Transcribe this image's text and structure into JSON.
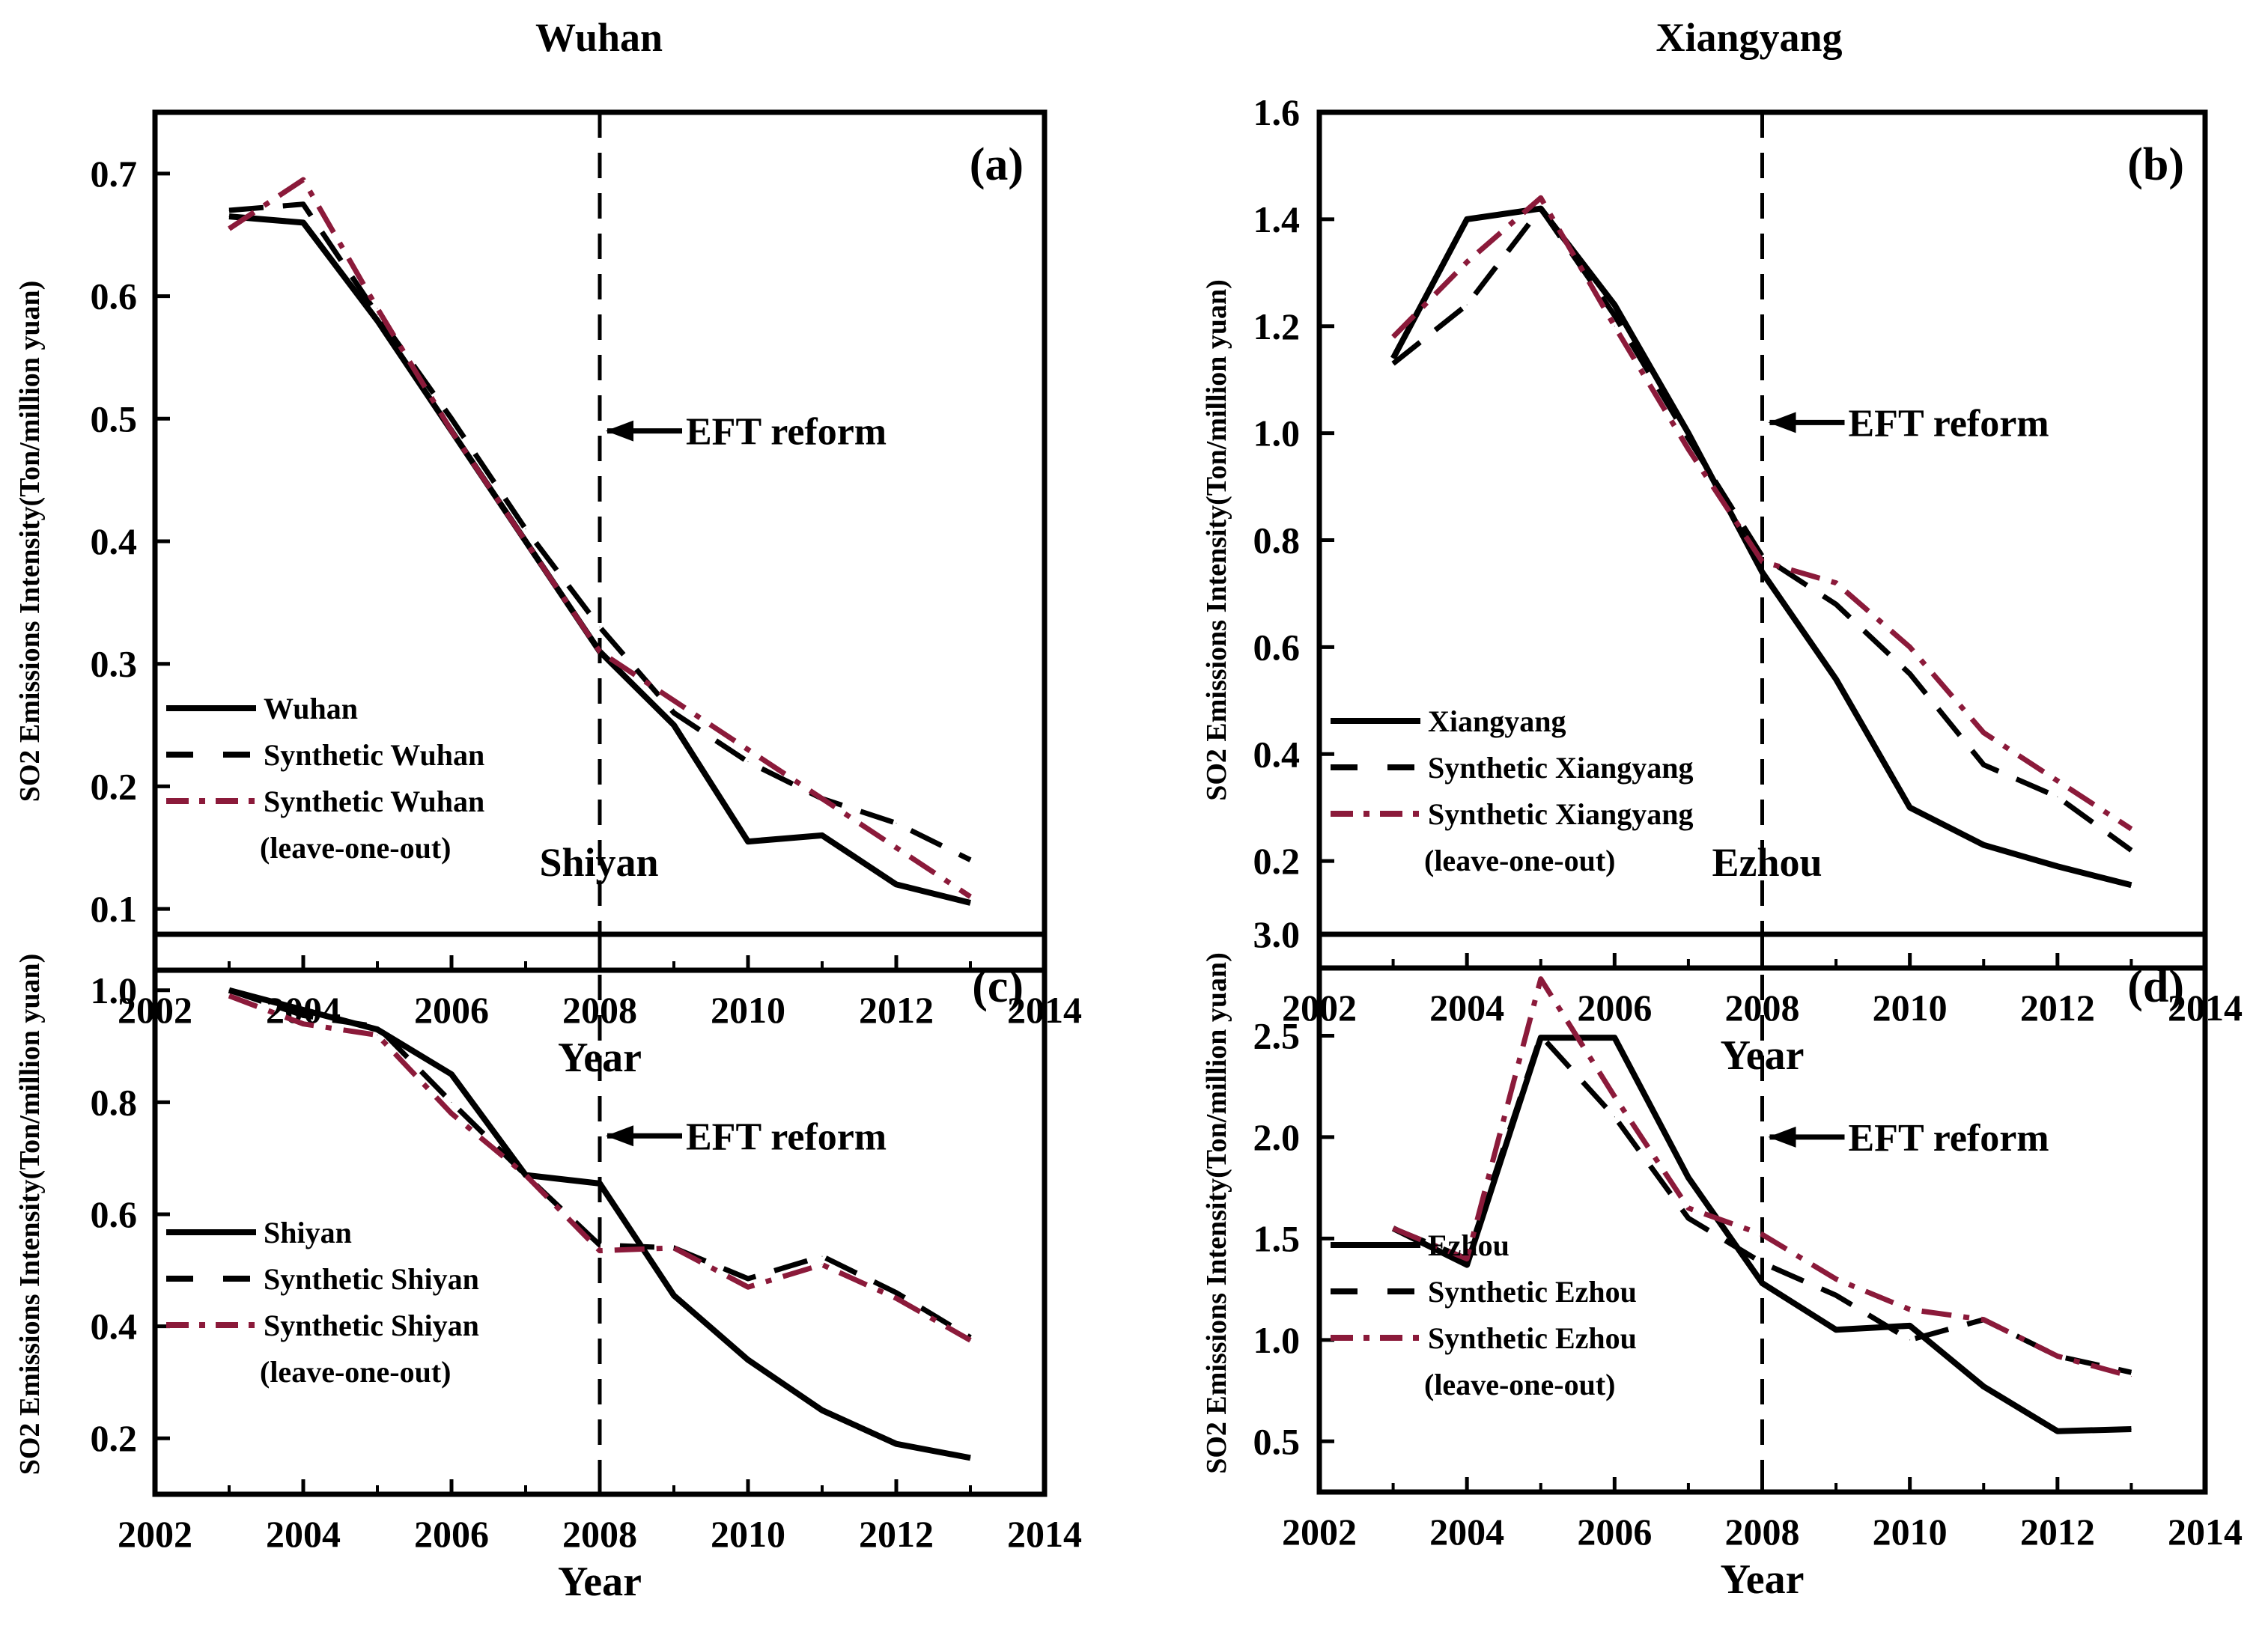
{
  "colors": {
    "actual": "#000000",
    "synthetic": "#000000",
    "leave_one_out": "#8b1a3a"
  },
  "chart_data": [
    {
      "type": "line",
      "panel_label": "(a)",
      "title": "Wuhan",
      "xlabel": "Year",
      "ylabel": "SO2 Emissions Intensity(Ton/million yuan)",
      "xlim": [
        2002,
        2014
      ],
      "ylim": [
        0.05,
        0.75
      ],
      "xticks": [
        2002,
        2004,
        2006,
        2008,
        2010,
        2012,
        2014
      ],
      "yticks": [
        0.1,
        0.2,
        0.3,
        0.4,
        0.5,
        0.6,
        0.7
      ],
      "ytick_labels": [
        "0.1",
        "0.2",
        "0.3",
        "0.4",
        "0.5",
        "0.6",
        "0.7"
      ],
      "annotation": {
        "text": "EFT reform",
        "x": 2008,
        "y": 0.49
      },
      "vline_x": 2008,
      "legend_position": "bottom-left",
      "x": [
        2003,
        2004,
        2005,
        2006,
        2007,
        2008,
        2009,
        2010,
        2011,
        2012,
        2013
      ],
      "series": [
        {
          "name": "Wuhan",
          "style": "solid",
          "values": [
            0.665,
            0.66,
            0.58,
            0.49,
            0.4,
            0.31,
            0.25,
            0.155,
            0.16,
            0.12,
            0.105
          ]
        },
        {
          "name": "Synthetic Wuhan",
          "style": "dashed",
          "values": [
            0.67,
            0.675,
            0.585,
            0.5,
            0.41,
            0.33,
            0.26,
            0.22,
            0.19,
            0.17,
            0.14
          ]
        },
        {
          "name": "Synthetic Wuhan",
          "name_line2": "(leave-one-out)",
          "style": "dashdot",
          "values": [
            0.655,
            0.695,
            0.59,
            0.49,
            0.4,
            0.31,
            0.27,
            0.23,
            0.19,
            0.15,
            0.11
          ]
        }
      ]
    },
    {
      "type": "line",
      "panel_label": "(b)",
      "title": "Xiangyang",
      "xlabel": "Year",
      "ylabel": "SO2 Emissions Intensity(Ton/million yuan)",
      "xlim": [
        2002,
        2014
      ],
      "ylim": [
        0.0,
        1.6
      ],
      "xticks": [
        2002,
        2004,
        2006,
        2008,
        2010,
        2012,
        2014
      ],
      "yticks": [
        0.2,
        0.4,
        0.6,
        0.8,
        1.0,
        1.2,
        1.4,
        1.6
      ],
      "ytick_labels": [
        "0.2",
        "0.4",
        "0.6",
        "0.8",
        "1.0",
        "1.2",
        "1.4",
        "1.6"
      ],
      "annotation": {
        "text": "EFT reform",
        "x": 2008,
        "y": 1.02
      },
      "vline_x": 2008,
      "legend_position": "bottom-left",
      "x": [
        2003,
        2004,
        2005,
        2006,
        2007,
        2008,
        2009,
        2010,
        2011,
        2012,
        2013
      ],
      "series": [
        {
          "name": "Xiangyang",
          "style": "solid",
          "values": [
            1.14,
            1.4,
            1.42,
            1.24,
            1.0,
            0.74,
            0.54,
            0.3,
            0.23,
            0.19,
            0.155
          ]
        },
        {
          "name": "Synthetic Xiangyang",
          "style": "dashed",
          "values": [
            1.13,
            1.24,
            1.42,
            1.22,
            0.99,
            0.77,
            0.68,
            0.55,
            0.38,
            0.32,
            0.22
          ]
        },
        {
          "name": "Synthetic Xiangyang",
          "name_line2": "(leave-one-out)",
          "style": "dashdot",
          "values": [
            1.18,
            1.32,
            1.44,
            1.2,
            0.97,
            0.76,
            0.72,
            0.6,
            0.44,
            0.35,
            0.26
          ]
        }
      ]
    },
    {
      "type": "line",
      "panel_label": "(c)",
      "title": "Shiyan",
      "xlabel": "Year",
      "ylabel": "SO2 Emissions Intensity(Ton/million yuan)",
      "xlim": [
        2002,
        2014
      ],
      "ylim": [
        0.1,
        1.1
      ],
      "xticks": [
        2002,
        2004,
        2006,
        2008,
        2010,
        2012,
        2014
      ],
      "yticks": [
        0.2,
        0.4,
        0.6,
        0.8,
        1.0
      ],
      "ytick_labels": [
        "0.2",
        "0.4",
        "0.6",
        "0.8",
        "1.0"
      ],
      "annotation": {
        "text": "EFT reform",
        "x": 2008,
        "y": 0.74
      },
      "vline_x": 2008,
      "legend_position": "bottom-left",
      "x": [
        2003,
        2004,
        2005,
        2006,
        2007,
        2008,
        2009,
        2010,
        2011,
        2012,
        2013
      ],
      "series": [
        {
          "name": "Shiyan",
          "style": "solid",
          "values": [
            1.0,
            0.965,
            0.93,
            0.85,
            0.67,
            0.655,
            0.455,
            0.34,
            0.25,
            0.19,
            0.165
          ]
        },
        {
          "name": "Synthetic Shiyan",
          "style": "dashed",
          "values": [
            1.0,
            0.955,
            0.935,
            0.8,
            0.67,
            0.545,
            0.54,
            0.485,
            0.525,
            0.46,
            0.38
          ]
        },
        {
          "name": "Synthetic Shiyan",
          "name_line2": "(leave-one-out)",
          "style": "dashdot",
          "values": [
            0.99,
            0.94,
            0.92,
            0.78,
            0.67,
            0.535,
            0.54,
            0.47,
            0.51,
            0.45,
            0.375
          ]
        }
      ]
    },
    {
      "type": "line",
      "panel_label": "(d)",
      "title": "Ezhou",
      "xlabel": "Year",
      "ylabel": "SO2 Emissions Intensity(Ton/million yuan)",
      "xlim": [
        2002,
        2014
      ],
      "ylim": [
        0.25,
        3.0
      ],
      "xticks": [
        2002,
        2004,
        2006,
        2008,
        2010,
        2012,
        2014
      ],
      "yticks": [
        0.5,
        1.0,
        1.5,
        2.0,
        2.5,
        3.0
      ],
      "ytick_labels": [
        "0.5",
        "1.0",
        "1.5",
        "2.0",
        "2.5",
        "3.0"
      ],
      "annotation": {
        "text": "EFT reform",
        "x": 2008,
        "y": 2.0
      },
      "vline_x": 2008,
      "legend_position": "bottom-left",
      "x": [
        2003,
        2004,
        2005,
        2006,
        2007,
        2008,
        2009,
        2010,
        2011,
        2012,
        2013
      ],
      "series": [
        {
          "name": "Ezhou",
          "style": "solid",
          "values": [
            1.55,
            1.37,
            2.49,
            2.49,
            1.8,
            1.28,
            1.05,
            1.07,
            0.77,
            0.55,
            0.56
          ]
        },
        {
          "name": "Synthetic Ezhou",
          "style": "dashed",
          "values": [
            1.55,
            1.4,
            2.5,
            2.1,
            1.6,
            1.38,
            1.22,
            1.0,
            1.1,
            0.92,
            0.84
          ]
        },
        {
          "name": "Synthetic Ezhou",
          "name_line2": "(leave-one-out)",
          "style": "dashdot",
          "values": [
            1.55,
            1.4,
            2.78,
            2.2,
            1.65,
            1.52,
            1.3,
            1.15,
            1.1,
            0.92,
            0.82
          ]
        }
      ]
    }
  ]
}
